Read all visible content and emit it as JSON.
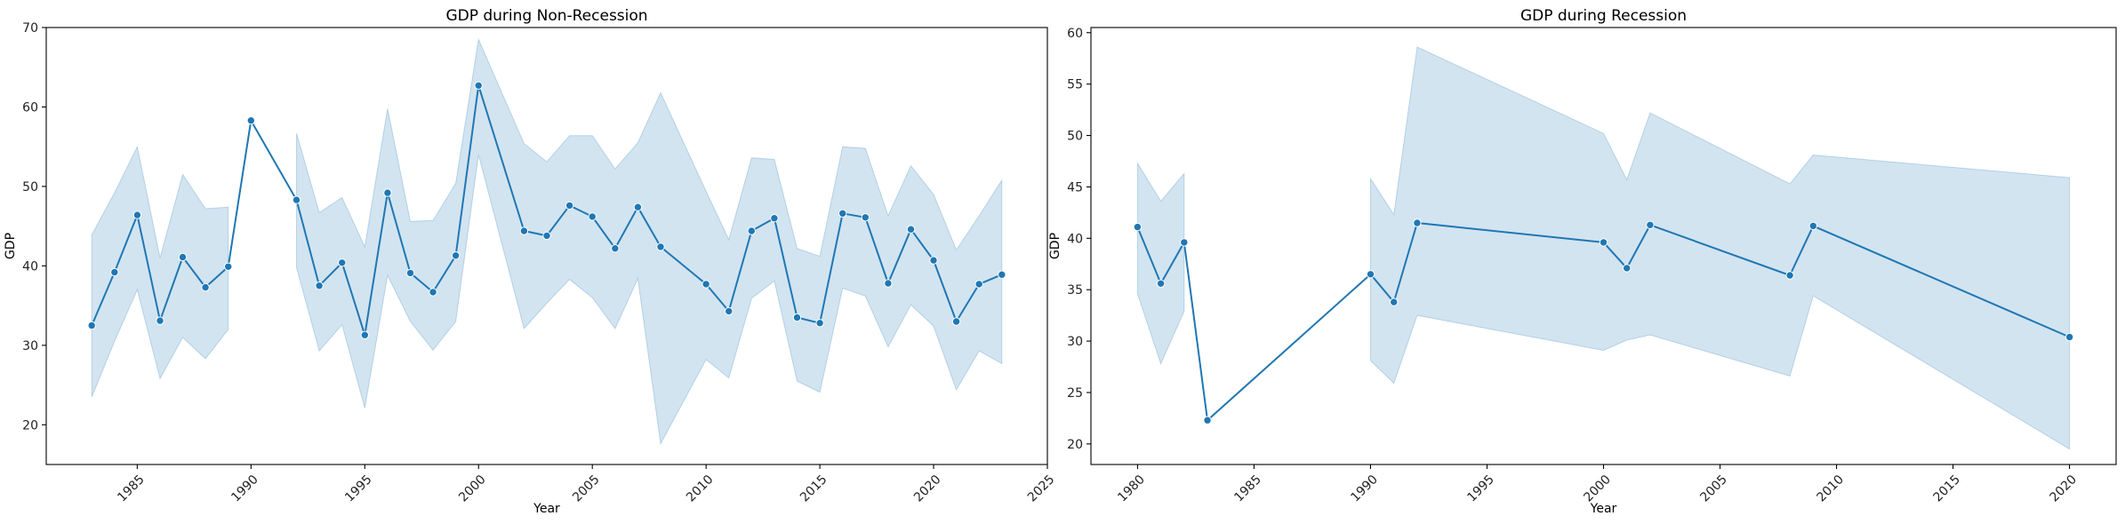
{
  "chart_data": [
    {
      "type": "line",
      "title": "GDP during Non-Recession",
      "xlabel": "Year",
      "ylabel": "GDP",
      "xlim": [
        1981.0,
        2025
      ],
      "ylim": [
        15,
        70
      ],
      "xticks": [
        1985,
        1990,
        1995,
        2000,
        2005,
        2010,
        2015,
        2020,
        2025
      ],
      "yticks": [
        20,
        30,
        40,
        50,
        60,
        70
      ],
      "grid": false,
      "color": "#1f77b4",
      "series": [
        {
          "x": [
            1983,
            1984,
            1985,
            1986,
            1987,
            1988,
            1989,
            1990,
            1992,
            1993,
            1994,
            1995,
            1996,
            1997,
            1998,
            1999,
            2000,
            2002,
            2003,
            2004,
            2005,
            2006,
            2007,
            2008,
            2010,
            2011,
            2012,
            2013,
            2014,
            2015,
            2016,
            2017,
            2018,
            2019,
            2020,
            2021,
            2022,
            2023
          ],
          "y": [
            32.5,
            39.2,
            46.4,
            33.1,
            41.1,
            37.3,
            39.9,
            58.3,
            48.3,
            37.5,
            40.4,
            31.3,
            49.2,
            39.1,
            36.7,
            41.3,
            62.7,
            44.4,
            43.8,
            47.6,
            46.2,
            42.2,
            47.4,
            42.4,
            37.7,
            34.3,
            44.4,
            46.0,
            33.5,
            32.8,
            46.6,
            46.1,
            37.8,
            44.6,
            40.7,
            33.0,
            37.7,
            38.9
          ],
          "ci_low": [
            23.5,
            30.5,
            37.0,
            25.8,
            31.0,
            28.3,
            32.0,
            null,
            39.8,
            29.3,
            32.6,
            22.1,
            38.8,
            33.0,
            29.4,
            33.0,
            54.0,
            32.1,
            35.3,
            38.3,
            36.0,
            32.1,
            38.4,
            17.6,
            28.2,
            25.9,
            35.9,
            38.1,
            25.5,
            24.1,
            37.2,
            36.2,
            29.8,
            35.1,
            32.4,
            24.4,
            29.3,
            27.7
          ],
          "ci_high": [
            43.9,
            49.2,
            55.0,
            41.0,
            51.5,
            47.2,
            47.4,
            null,
            56.7,
            46.7,
            48.6,
            42.4,
            59.8,
            45.6,
            45.7,
            50.4,
            68.5,
            55.4,
            53.1,
            56.4,
            56.4,
            52.2,
            55.5,
            61.8,
            49.4,
            43.3,
            53.6,
            53.4,
            42.2,
            41.2,
            55.0,
            54.8,
            46.3,
            52.6,
            49.0,
            42.0,
            46.3,
            50.8
          ]
        }
      ]
    },
    {
      "type": "line",
      "title": "GDP during Recession",
      "xlabel": "Year",
      "ylabel": "GDP",
      "xlim": [
        1978,
        2022
      ],
      "ylim": [
        18.0,
        60.5
      ],
      "xticks": [
        1980,
        1985,
        1990,
        1995,
        2000,
        2005,
        2010,
        2015,
        2020
      ],
      "yticks": [
        20,
        25,
        30,
        35,
        40,
        45,
        50,
        55,
        60
      ],
      "grid": false,
      "color": "#1f77b4",
      "series": [
        {
          "x": [
            1980,
            1981,
            1982,
            1983,
            1990,
            1991,
            1992,
            2000,
            2001,
            2002,
            2008,
            2009,
            2020
          ],
          "y": [
            41.1,
            35.6,
            39.6,
            22.3,
            36.5,
            33.8,
            41.5,
            39.6,
            37.1,
            41.3,
            36.4,
            41.2,
            30.4
          ],
          "ci_low": [
            34.6,
            27.8,
            32.9,
            null,
            28.1,
            25.9,
            32.5,
            29.1,
            30.1,
            30.6,
            26.6,
            34.4,
            19.5
          ],
          "ci_high": [
            47.3,
            43.6,
            46.3,
            null,
            45.8,
            42.3,
            58.6,
            50.2,
            45.7,
            52.2,
            45.3,
            48.1,
            45.9
          ]
        }
      ]
    }
  ]
}
